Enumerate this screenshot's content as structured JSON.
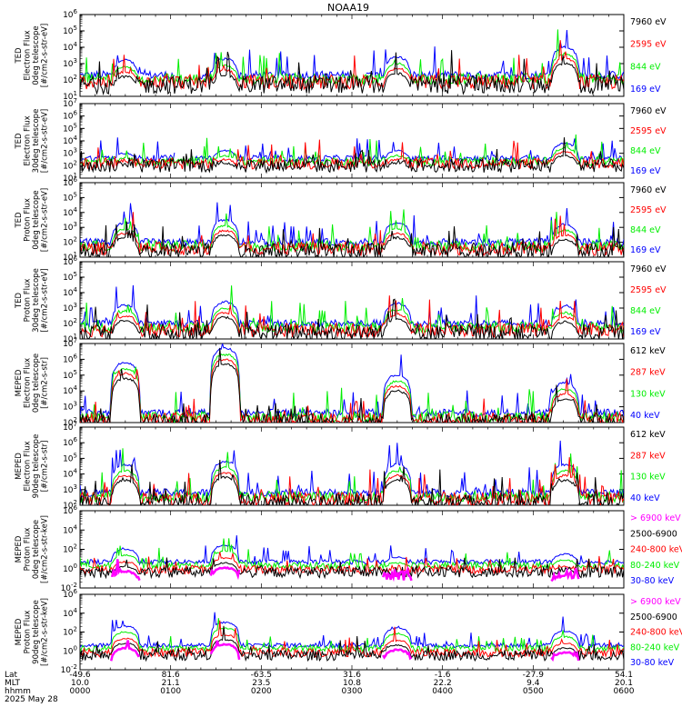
{
  "title": "NOAA19",
  "colors": {
    "black": "#000000",
    "red": "#ff0000",
    "green": "#00ee00",
    "blue": "#0000ff",
    "magenta": "#ff00ff"
  },
  "x_axis": {
    "rows": [
      {
        "label": "Lat",
        "values": [
          "-49.6",
          "81.6",
          "-63.5",
          "31.6",
          "-1.6",
          "-27.9",
          "54.1"
        ]
      },
      {
        "label": "MLT",
        "values": [
          "10.0",
          "21.1",
          "23.5",
          "10.8",
          "22.2",
          "9.4",
          "20.1"
        ]
      },
      {
        "label": "hhmm",
        "values": [
          "0000",
          "0100",
          "0200",
          "0300",
          "0400",
          "0500",
          "0600"
        ]
      }
    ],
    "date": "2025 May 28"
  },
  "chart_data": [
    {
      "type": "line",
      "panel": "TED electron 0deg",
      "ylabel": [
        "TED",
        "Electron Flux",
        "0deg telescope",
        "[#/cm2-s-str-eV]"
      ],
      "ylim_log10": [
        1,
        6
      ],
      "tick_labels": [
        "10^1",
        "10^2",
        "10^3",
        "10^4",
        "10^5",
        "10^6"
      ],
      "legend": [
        {
          "label": "7960 eV",
          "color": "black"
        },
        {
          "label": "2595 eV",
          "color": "red"
        },
        {
          "label": "844 eV",
          "color": "green"
        },
        {
          "label": "169 eV",
          "color": "blue"
        }
      ],
      "humps": [
        [
          0.5,
          3.2
        ],
        [
          1.6,
          3.3
        ],
        [
          3.5,
          3.4
        ],
        [
          5.35,
          4.0
        ]
      ],
      "blue_base_log10": 2.3,
      "blue_gaps": [
        [
          1.05,
          1.3
        ],
        [
          3.0,
          3.15
        ]
      ]
    },
    {
      "type": "line",
      "panel": "TED electron 30deg",
      "ylabel": [
        "TED",
        "Electron Flux",
        "30deg telescope",
        "[#/cm2-s-str-eV]"
      ],
      "ylim_log10": [
        1,
        7
      ],
      "tick_labels": [
        "10^1",
        "10^2",
        "10^3",
        "10^4",
        "10^5",
        "10^6",
        "10^7"
      ],
      "legend": [
        {
          "label": "7960 eV",
          "color": "black"
        },
        {
          "label": "2595 eV",
          "color": "red"
        },
        {
          "label": "844 eV",
          "color": "green"
        },
        {
          "label": "169 eV",
          "color": "blue"
        }
      ],
      "humps": [
        [
          0.5,
          3.0
        ],
        [
          1.6,
          3.2
        ],
        [
          3.5,
          3.2
        ],
        [
          5.35,
          3.8
        ]
      ],
      "blue_base_log10": 2.6,
      "blue_gaps": [
        [
          1.05,
          1.25
        ]
      ]
    },
    {
      "type": "line",
      "panel": "TED proton 0deg",
      "ylabel": [
        "TED",
        "Proton Flux",
        "0deg telescope",
        "[#/cm2-s-str-eV]"
      ],
      "ylim_log10": [
        1,
        6
      ],
      "tick_labels": [
        "10^1",
        "10^2",
        "10^3",
        "10^4",
        "10^5",
        "10^6"
      ],
      "legend": [
        {
          "label": "7960 eV",
          "color": "black"
        },
        {
          "label": "2595 eV",
          "color": "red"
        },
        {
          "label": "844 eV",
          "color": "green"
        },
        {
          "label": "169 eV",
          "color": "blue"
        }
      ],
      "humps": [
        [
          0.5,
          3.3
        ],
        [
          1.6,
          3.5
        ],
        [
          3.5,
          3.3
        ],
        [
          5.35,
          3.2
        ]
      ],
      "blue_base_log10": 2.0,
      "blue_gaps": []
    },
    {
      "type": "line",
      "panel": "TED proton 30deg",
      "ylabel": [
        "TED",
        "Proton Flux",
        "30deg telescope",
        "[#/cm2-s-str-eV]"
      ],
      "ylim_log10": [
        1,
        6
      ],
      "tick_labels": [
        "10^1",
        "10^2",
        "10^3",
        "10^4",
        "10^5",
        "10^6"
      ],
      "legend": [
        {
          "label": "7960 eV",
          "color": "black"
        },
        {
          "label": "2595 eV",
          "color": "red"
        },
        {
          "label": "844 eV",
          "color": "green"
        },
        {
          "label": "169 eV",
          "color": "blue"
        }
      ],
      "humps": [
        [
          0.5,
          3.2
        ],
        [
          1.6,
          3.4
        ],
        [
          3.5,
          3.3
        ],
        [
          5.35,
          3.1
        ]
      ],
      "blue_base_log10": 2.0,
      "blue_gaps": []
    },
    {
      "type": "line",
      "panel": "MEPED electron 0deg",
      "ylabel": [
        "MEPED",
        "Electron Flux",
        "0deg telescope",
        "[#/cm2-s-str]"
      ],
      "ylim_log10": [
        2,
        7
      ],
      "tick_labels": [
        "10^2",
        "10^3",
        "10^4",
        "10^5",
        "10^6",
        "10^7"
      ],
      "legend": [
        {
          "label": "612 keV",
          "color": "black"
        },
        {
          "label": "287 keV",
          "color": "red"
        },
        {
          "label": "130 keV",
          "color": "green"
        },
        {
          "label": "40 keV",
          "color": "blue"
        }
      ],
      "humps": [
        [
          0.5,
          5.8
        ],
        [
          1.6,
          6.7
        ],
        [
          3.5,
          5.0
        ],
        [
          5.35,
          4.5
        ]
      ],
      "blue_base_log10": 2.6,
      "blue_gaps": []
    },
    {
      "type": "line",
      "panel": "MEPED electron 90deg",
      "ylabel": [
        "MEPED",
        "Electron Flux",
        "90deg telescope",
        "[#/cm2-s-str]"
      ],
      "ylim_log10": [
        2,
        7
      ],
      "tick_labels": [
        "10^2",
        "10^3",
        "10^4",
        "10^5",
        "10^6",
        "10^7"
      ],
      "legend": [
        {
          "label": "612 keV",
          "color": "black"
        },
        {
          "label": "287 keV",
          "color": "red"
        },
        {
          "label": "130 keV",
          "color": "green"
        },
        {
          "label": "40 keV",
          "color": "blue"
        }
      ],
      "humps": [
        [
          0.5,
          4.6
        ],
        [
          1.6,
          4.8
        ],
        [
          3.5,
          4.6
        ],
        [
          5.35,
          4.6
        ]
      ],
      "blue_base_log10": 2.8,
      "blue_gaps": []
    },
    {
      "type": "line",
      "panel": "MEPED proton 0deg",
      "ylabel": [
        "MEPED",
        "Proton Flux",
        "0deg telescope",
        "[#/cm2-s-str-keV]"
      ],
      "ylim_log10": [
        -2,
        6
      ],
      "tick_labels": [
        "10^-2",
        "10^0",
        "10^2",
        "10^4",
        "10^6"
      ],
      "tick_step_log10": 2,
      "legend": [
        {
          "label": "> 6900 keV",
          "color": "magenta"
        },
        {
          "label": "2500-6900",
          "color": "black"
        },
        {
          "label": "240-800 keV",
          "color": "red"
        },
        {
          "label": "80-240 keV",
          "color": "green"
        },
        {
          "label": "30-80 keV",
          "color": "blue"
        }
      ],
      "humps": [
        [
          0.5,
          2.0
        ],
        [
          1.6,
          2.4
        ],
        [
          3.5,
          1.2
        ],
        [
          5.35,
          1.5
        ]
      ],
      "blue_base_log10": 0.7,
      "blue_gaps": []
    },
    {
      "type": "line",
      "panel": "MEPED proton 90deg",
      "ylabel": [
        "MEPED",
        "Proton Flux",
        "90deg telescope",
        "[#/cm2-s-str-keV]"
      ],
      "ylim_log10": [
        -2,
        6
      ],
      "tick_labels": [
        "10^-2",
        "10^0",
        "10^2",
        "10^4",
        "10^6"
      ],
      "tick_step_log10": 2,
      "legend": [
        {
          "label": "> 6900 keV",
          "color": "magenta"
        },
        {
          "label": "2500-6900",
          "color": "black"
        },
        {
          "label": "240-800 keV",
          "color": "red"
        },
        {
          "label": "80-240 keV",
          "color": "green"
        },
        {
          "label": "30-80 keV",
          "color": "blue"
        }
      ],
      "humps": [
        [
          0.5,
          2.6
        ],
        [
          1.6,
          3.0
        ],
        [
          3.5,
          2.4
        ],
        [
          5.35,
          2.1
        ]
      ],
      "blue_base_log10": 0.6,
      "blue_gaps": []
    }
  ]
}
